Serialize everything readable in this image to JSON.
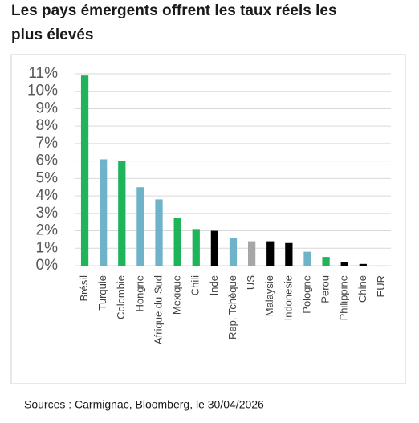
{
  "chart_data": {
    "type": "bar",
    "title": [
      "Les pays émergents offrent les taux réels les",
      "plus élevés"
    ],
    "source": "Sources : Carmignac, Bloomberg, le 30/04/2026",
    "categories": [
      "Brésil",
      "Turquie",
      "Colombie",
      "Hongrie",
      "Afrique du Sud",
      "Mexique",
      "Chili",
      "Inde",
      "Rep. Tchèque",
      "US",
      "Malaysie",
      "Indonesie",
      "Pologne",
      "Perou",
      "Philippine",
      "Chine",
      "EUR"
    ],
    "values": [
      10.9,
      6.1,
      6.0,
      4.5,
      3.8,
      2.75,
      2.1,
      2.0,
      1.6,
      1.4,
      1.4,
      1.3,
      0.8,
      0.5,
      0.2,
      0.1,
      -0.05
    ],
    "colors": [
      "#1fb35a",
      "#6eb3c9",
      "#1fb35a",
      "#6eb3c9",
      "#6eb3c9",
      "#1fb35a",
      "#1fb35a",
      "#000000",
      "#6eb3c9",
      "#a6a6a6",
      "#000000",
      "#000000",
      "#6eb3c9",
      "#1fb35a",
      "#000000",
      "#000000",
      "#a6a6a6"
    ],
    "ylim": [
      0,
      11
    ],
    "yticks": [
      {
        "value": 0,
        "label": "0%"
      },
      {
        "value": 1,
        "label": "1%"
      },
      {
        "value": 2,
        "label": "2%"
      },
      {
        "value": 3,
        "label": "3%"
      },
      {
        "value": 4,
        "label": "4%"
      },
      {
        "value": 5,
        "label": "5%"
      },
      {
        "value": 6,
        "label": "6%"
      },
      {
        "value": 7,
        "label": "7%"
      },
      {
        "value": 8,
        "label": "8%"
      },
      {
        "value": 9,
        "label": "9%"
      },
      {
        "value": 10,
        "label": "10%"
      },
      {
        "value": 11,
        "label": "11%"
      }
    ],
    "grid": true
  }
}
